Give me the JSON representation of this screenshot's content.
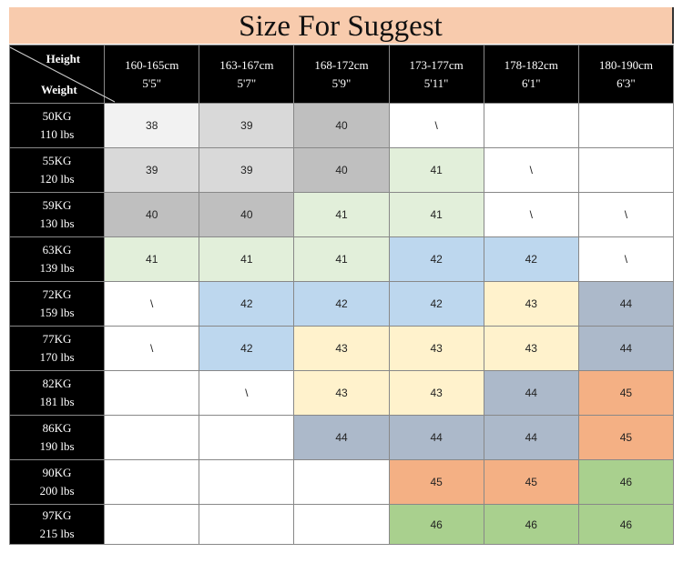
{
  "title": "Size For Suggest",
  "corner": {
    "height_label": "Height",
    "weight_label": "Weight"
  },
  "columns": [
    {
      "cm": "160-165cm",
      "ft": "5'5\""
    },
    {
      "cm": "163-167cm",
      "ft": "5'7\""
    },
    {
      "cm": "168-172cm",
      "ft": "5'9\""
    },
    {
      "cm": "173-177cm",
      "ft": "5'11\""
    },
    {
      "cm": "178-182cm",
      "ft": "6'1\""
    },
    {
      "cm": "180-190cm",
      "ft": "6'3\""
    }
  ],
  "rows": [
    {
      "kg": "50KG",
      "lbs": "110 lbs",
      "sizes": [
        "38",
        "39",
        "40",
        "\\",
        "",
        ""
      ]
    },
    {
      "kg": "55KG",
      "lbs": "120 lbs",
      "sizes": [
        "39",
        "39",
        "40",
        "41",
        "\\",
        ""
      ]
    },
    {
      "kg": "59KG",
      "lbs": "130 lbs",
      "sizes": [
        "40",
        "40",
        "41",
        "41",
        "\\",
        "\\"
      ]
    },
    {
      "kg": "63KG",
      "lbs": "139 lbs",
      "sizes": [
        "41",
        "41",
        "41",
        "42",
        "42",
        "\\"
      ]
    },
    {
      "kg": "72KG",
      "lbs": "159 lbs",
      "sizes": [
        "\\",
        "42",
        "42",
        "42",
        "43",
        "44"
      ]
    },
    {
      "kg": "77KG",
      "lbs": "170 lbs",
      "sizes": [
        "\\",
        "42",
        "43",
        "43",
        "43",
        "44"
      ]
    },
    {
      "kg": "82KG",
      "lbs": "181 lbs",
      "sizes": [
        "",
        "\\",
        "43",
        "43",
        "44",
        "45"
      ]
    },
    {
      "kg": "86KG",
      "lbs": "190 lbs",
      "sizes": [
        "",
        "",
        "44",
        "44",
        "44",
        "45"
      ]
    },
    {
      "kg": "90KG",
      "lbs": "200 lbs",
      "sizes": [
        "",
        "",
        "",
        "45",
        "45",
        "46"
      ]
    },
    {
      "kg": "97KG",
      "lbs": "215 lbs",
      "sizes": [
        "",
        "",
        "",
        "46",
        "46",
        "46"
      ]
    }
  ],
  "size_colors": {
    "38": "#f2f2f2",
    "39": "#d9d9d9",
    "40": "#bfbfbf",
    "41": "#e2efda",
    "42": "#bdd7ee",
    "43": "#fff2cc",
    "44": "#acb9ca",
    "45": "#f4b084",
    "46": "#a9d08e"
  },
  "colors": {
    "title_bg": "#f8cbad",
    "header_bg": "#000000"
  }
}
